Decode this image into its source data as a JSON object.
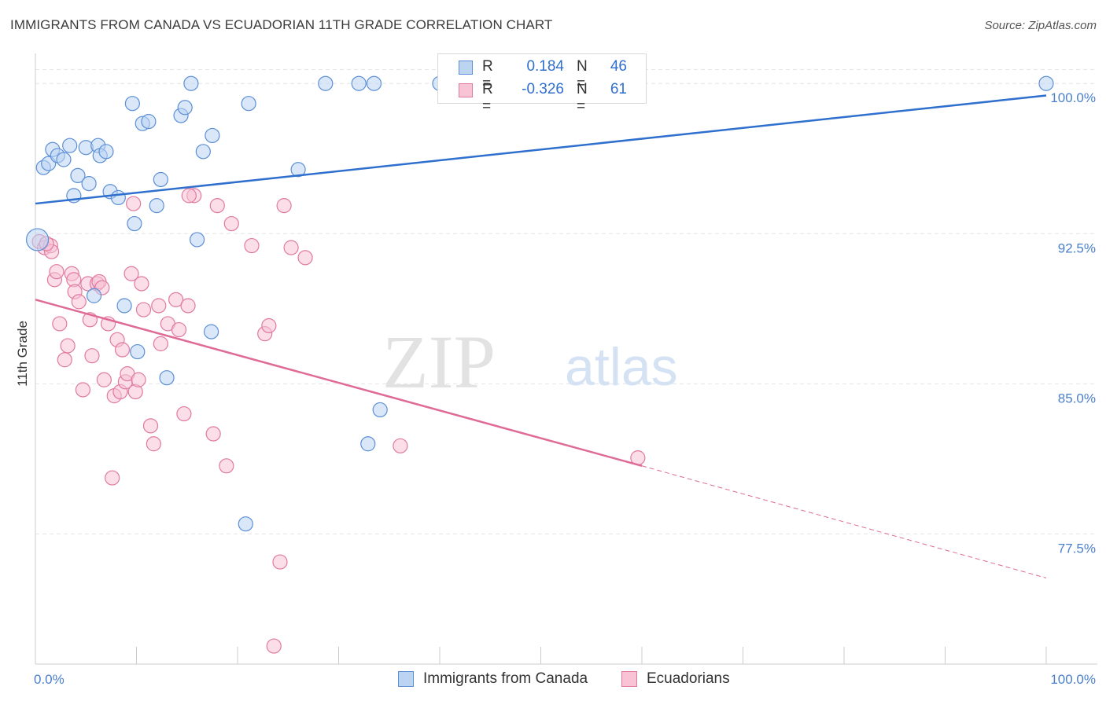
{
  "title": "IMMIGRANTS FROM CANADA VS ECUADORIAN 11TH GRADE CORRELATION CHART",
  "source": "Source: ZipAtlas.com",
  "watermark": {
    "zip": "ZIP",
    "atlas": "atlas"
  },
  "stats": {
    "r_label": "R =",
    "n_label": "N =",
    "rows": [
      {
        "r": "0.184",
        "n": "46",
        "color": "#5b8fd6",
        "fill": "#bcd3f2"
      },
      {
        "r": "-0.326",
        "n": "61",
        "color": "#e07aa0",
        "fill": "#f7c3d5"
      }
    ]
  },
  "legend": [
    {
      "label": "Immigrants from Canada",
      "color": "#5b8fd6",
      "fill": "#bcd3f2"
    },
    {
      "label": "Ecuadorians",
      "color": "#e07aa0",
      "fill": "#f7c3d5"
    }
  ],
  "colors": {
    "blue_line": "#2f6fce",
    "pink_line": "#e06a96",
    "tick_label": "#4a7fcc",
    "grid": "#e4e4e4",
    "axis": "#cccccc"
  },
  "chart_data": {
    "type": "scatter",
    "title": "IMMIGRANTS FROM CANADA VS ECUADORIAN 11TH GRADE CORRELATION CHART",
    "xlabel": "",
    "ylabel": "11th Grade",
    "xlim": [
      0,
      100
    ],
    "ylim": [
      71.0,
      101.5
    ],
    "x_tick_labels": [
      "0.0%",
      "100.0%"
    ],
    "y_ticks": [
      77.5,
      85.0,
      92.5,
      100.0
    ],
    "y_tick_labels": [
      "77.5%",
      "85.0%",
      "92.5%",
      "100.0%"
    ],
    "grid": true,
    "series": [
      {
        "name": "Immigrants from Canada",
        "trend": {
          "x": [
            0,
            100
          ],
          "y": [
            94.0,
            99.4
          ]
        },
        "points": [
          [
            0.2,
            92.2
          ],
          [
            0.8,
            95.8
          ],
          [
            1.3,
            96.0
          ],
          [
            1.7,
            96.7
          ],
          [
            2.2,
            96.4
          ],
          [
            2.8,
            96.2
          ],
          [
            3.4,
            96.9
          ],
          [
            3.8,
            94.4
          ],
          [
            4.2,
            95.4
          ],
          [
            5.0,
            96.8
          ],
          [
            5.3,
            95.0
          ],
          [
            6.2,
            96.9
          ],
          [
            6.4,
            96.4
          ],
          [
            7.0,
            96.6
          ],
          [
            7.4,
            94.6
          ],
          [
            8.2,
            94.3
          ],
          [
            9.6,
            99.0
          ],
          [
            9.8,
            93.0
          ],
          [
            10.6,
            98.0
          ],
          [
            11.2,
            98.1
          ],
          [
            12.0,
            93.9
          ],
          [
            12.4,
            95.2
          ],
          [
            14.4,
            98.4
          ],
          [
            14.8,
            98.8
          ],
          [
            15.4,
            100.0
          ],
          [
            16.0,
            92.2
          ],
          [
            16.6,
            96.6
          ],
          [
            17.5,
            97.4
          ],
          [
            21.1,
            99.0
          ],
          [
            26.0,
            95.7
          ],
          [
            28.7,
            100.0
          ],
          [
            32.0,
            100.0
          ],
          [
            33.5,
            100.0
          ],
          [
            40.0,
            100.0
          ],
          [
            47.5,
            100.0
          ],
          [
            49.5,
            100.0
          ],
          [
            55.0,
            100.0
          ],
          [
            100.0,
            100.0
          ],
          [
            5.8,
            89.4
          ],
          [
            8.8,
            88.9
          ],
          [
            10.1,
            86.6
          ],
          [
            13.0,
            85.3
          ],
          [
            17.4,
            87.6
          ],
          [
            20.8,
            78.0
          ],
          [
            32.9,
            82.0
          ],
          [
            34.1,
            83.7
          ]
        ]
      },
      {
        "name": "Ecuadorians",
        "trend": {
          "x": [
            0,
            60
          ],
          "y": [
            89.2,
            80.9
          ]
        },
        "trend_dashed": {
          "x": [
            60,
            100
          ],
          "y": [
            80.9,
            75.3
          ]
        },
        "points": [
          [
            0.4,
            92.1
          ],
          [
            0.9,
            91.8
          ],
          [
            1.5,
            91.9
          ],
          [
            1.6,
            91.6
          ],
          [
            1.9,
            90.2
          ],
          [
            2.1,
            90.6
          ],
          [
            2.4,
            88.0
          ],
          [
            2.9,
            86.2
          ],
          [
            3.2,
            86.9
          ],
          [
            3.6,
            90.5
          ],
          [
            3.8,
            90.2
          ],
          [
            3.9,
            89.6
          ],
          [
            4.3,
            89.1
          ],
          [
            4.7,
            84.7
          ],
          [
            5.2,
            90.0
          ],
          [
            5.4,
            88.2
          ],
          [
            5.6,
            86.4
          ],
          [
            6.1,
            90.0
          ],
          [
            6.3,
            90.1
          ],
          [
            6.6,
            89.8
          ],
          [
            6.8,
            85.2
          ],
          [
            7.2,
            88.0
          ],
          [
            7.6,
            80.3
          ],
          [
            7.8,
            84.4
          ],
          [
            8.1,
            87.2
          ],
          [
            8.4,
            84.6
          ],
          [
            8.6,
            86.7
          ],
          [
            8.9,
            85.1
          ],
          [
            9.1,
            85.5
          ],
          [
            9.5,
            90.5
          ],
          [
            9.9,
            84.6
          ],
          [
            10.2,
            85.2
          ],
          [
            10.5,
            90.0
          ],
          [
            10.7,
            88.7
          ],
          [
            11.4,
            82.9
          ],
          [
            11.7,
            82.0
          ],
          [
            12.2,
            88.9
          ],
          [
            12.4,
            87.0
          ],
          [
            13.1,
            88.0
          ],
          [
            13.9,
            89.2
          ],
          [
            14.2,
            87.7
          ],
          [
            14.7,
            83.5
          ],
          [
            15.1,
            88.9
          ],
          [
            15.7,
            94.4
          ],
          [
            17.6,
            82.5
          ],
          [
            18.0,
            93.9
          ],
          [
            18.9,
            80.9
          ],
          [
            19.4,
            93.0
          ],
          [
            21.4,
            91.9
          ],
          [
            22.7,
            87.5
          ],
          [
            23.1,
            87.9
          ],
          [
            23.6,
            71.9
          ],
          [
            24.2,
            76.1
          ],
          [
            24.6,
            93.9
          ],
          [
            25.3,
            91.8
          ],
          [
            26.7,
            91.3
          ],
          [
            36.1,
            81.9
          ],
          [
            59.6,
            81.3
          ],
          [
            9.7,
            94.0
          ],
          [
            15.2,
            94.4
          ],
          [
            1.1,
            92.0
          ]
        ]
      }
    ]
  }
}
